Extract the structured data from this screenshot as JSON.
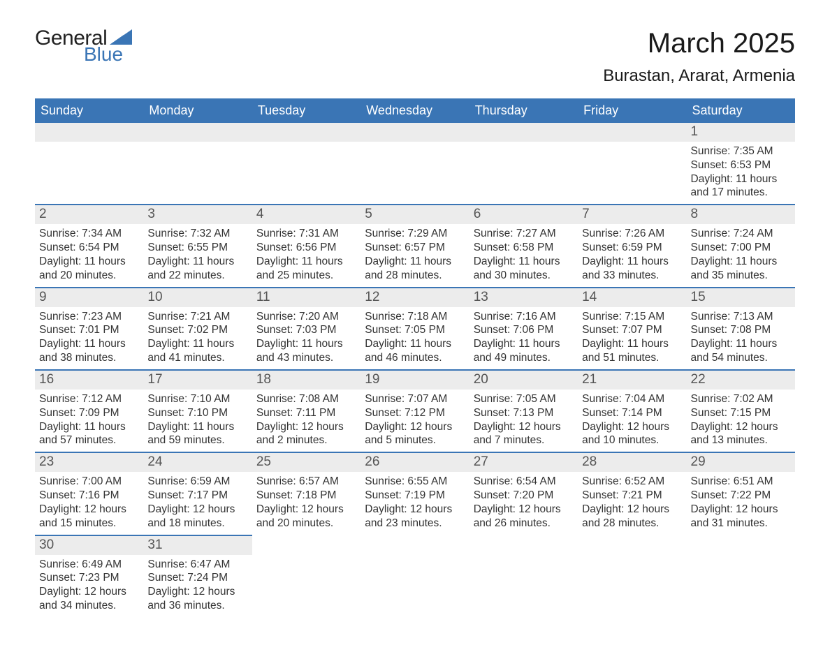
{
  "brand": {
    "text_general": "General",
    "text_blue": "Blue",
    "shape_color": "#3a75b5",
    "general_color": "#222222"
  },
  "header": {
    "title": "March 2025",
    "location": "Burastan, Ararat, Armenia",
    "title_fontsize": 40,
    "location_fontsize": 24
  },
  "table": {
    "header_bg": "#3a75b5",
    "header_text_color": "#ffffff",
    "row_divider_color": "#3a75b5",
    "daynum_bg": "#ececec",
    "body_text_color": "#333333",
    "columns": [
      "Sunday",
      "Monday",
      "Tuesday",
      "Wednesday",
      "Thursday",
      "Friday",
      "Saturday"
    ]
  },
  "labels": {
    "sunrise": "Sunrise:",
    "sunset": "Sunset:",
    "daylight": "Daylight:"
  },
  "weeks": [
    [
      {
        "blank": true
      },
      {
        "blank": true
      },
      {
        "blank": true
      },
      {
        "blank": true
      },
      {
        "blank": true
      },
      {
        "blank": true
      },
      {
        "day": "1",
        "sunrise": "7:35 AM",
        "sunset": "6:53 PM",
        "daylight": "11 hours and 17 minutes."
      }
    ],
    [
      {
        "day": "2",
        "sunrise": "7:34 AM",
        "sunset": "6:54 PM",
        "daylight": "11 hours and 20 minutes."
      },
      {
        "day": "3",
        "sunrise": "7:32 AM",
        "sunset": "6:55 PM",
        "daylight": "11 hours and 22 minutes."
      },
      {
        "day": "4",
        "sunrise": "7:31 AM",
        "sunset": "6:56 PM",
        "daylight": "11 hours and 25 minutes."
      },
      {
        "day": "5",
        "sunrise": "7:29 AM",
        "sunset": "6:57 PM",
        "daylight": "11 hours and 28 minutes."
      },
      {
        "day": "6",
        "sunrise": "7:27 AM",
        "sunset": "6:58 PM",
        "daylight": "11 hours and 30 minutes."
      },
      {
        "day": "7",
        "sunrise": "7:26 AM",
        "sunset": "6:59 PM",
        "daylight": "11 hours and 33 minutes."
      },
      {
        "day": "8",
        "sunrise": "7:24 AM",
        "sunset": "7:00 PM",
        "daylight": "11 hours and 35 minutes."
      }
    ],
    [
      {
        "day": "9",
        "sunrise": "7:23 AM",
        "sunset": "7:01 PM",
        "daylight": "11 hours and 38 minutes."
      },
      {
        "day": "10",
        "sunrise": "7:21 AM",
        "sunset": "7:02 PM",
        "daylight": "11 hours and 41 minutes."
      },
      {
        "day": "11",
        "sunrise": "7:20 AM",
        "sunset": "7:03 PM",
        "daylight": "11 hours and 43 minutes."
      },
      {
        "day": "12",
        "sunrise": "7:18 AM",
        "sunset": "7:05 PM",
        "daylight": "11 hours and 46 minutes."
      },
      {
        "day": "13",
        "sunrise": "7:16 AM",
        "sunset": "7:06 PM",
        "daylight": "11 hours and 49 minutes."
      },
      {
        "day": "14",
        "sunrise": "7:15 AM",
        "sunset": "7:07 PM",
        "daylight": "11 hours and 51 minutes."
      },
      {
        "day": "15",
        "sunrise": "7:13 AM",
        "sunset": "7:08 PM",
        "daylight": "11 hours and 54 minutes."
      }
    ],
    [
      {
        "day": "16",
        "sunrise": "7:12 AM",
        "sunset": "7:09 PM",
        "daylight": "11 hours and 57 minutes."
      },
      {
        "day": "17",
        "sunrise": "7:10 AM",
        "sunset": "7:10 PM",
        "daylight": "11 hours and 59 minutes."
      },
      {
        "day": "18",
        "sunrise": "7:08 AM",
        "sunset": "7:11 PM",
        "daylight": "12 hours and 2 minutes."
      },
      {
        "day": "19",
        "sunrise": "7:07 AM",
        "sunset": "7:12 PM",
        "daylight": "12 hours and 5 minutes."
      },
      {
        "day": "20",
        "sunrise": "7:05 AM",
        "sunset": "7:13 PM",
        "daylight": "12 hours and 7 minutes."
      },
      {
        "day": "21",
        "sunrise": "7:04 AM",
        "sunset": "7:14 PM",
        "daylight": "12 hours and 10 minutes."
      },
      {
        "day": "22",
        "sunrise": "7:02 AM",
        "sunset": "7:15 PM",
        "daylight": "12 hours and 13 minutes."
      }
    ],
    [
      {
        "day": "23",
        "sunrise": "7:00 AM",
        "sunset": "7:16 PM",
        "daylight": "12 hours and 15 minutes."
      },
      {
        "day": "24",
        "sunrise": "6:59 AM",
        "sunset": "7:17 PM",
        "daylight": "12 hours and 18 minutes."
      },
      {
        "day": "25",
        "sunrise": "6:57 AM",
        "sunset": "7:18 PM",
        "daylight": "12 hours and 20 minutes."
      },
      {
        "day": "26",
        "sunrise": "6:55 AM",
        "sunset": "7:19 PM",
        "daylight": "12 hours and 23 minutes."
      },
      {
        "day": "27",
        "sunrise": "6:54 AM",
        "sunset": "7:20 PM",
        "daylight": "12 hours and 26 minutes."
      },
      {
        "day": "28",
        "sunrise": "6:52 AM",
        "sunset": "7:21 PM",
        "daylight": "12 hours and 28 minutes."
      },
      {
        "day": "29",
        "sunrise": "6:51 AM",
        "sunset": "7:22 PM",
        "daylight": "12 hours and 31 minutes."
      }
    ],
    [
      {
        "day": "30",
        "sunrise": "6:49 AM",
        "sunset": "7:23 PM",
        "daylight": "12 hours and 34 minutes."
      },
      {
        "day": "31",
        "sunrise": "6:47 AM",
        "sunset": "7:24 PM",
        "daylight": "12 hours and 36 minutes."
      },
      {
        "blank": true
      },
      {
        "blank": true
      },
      {
        "blank": true
      },
      {
        "blank": true
      },
      {
        "blank": true
      }
    ]
  ]
}
